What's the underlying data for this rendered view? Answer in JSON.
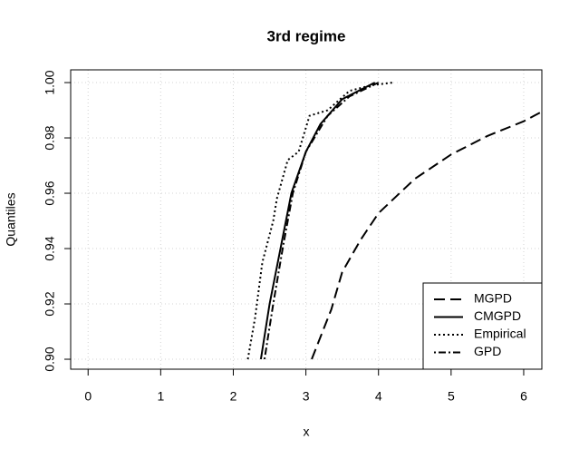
{
  "chart_data": {
    "type": "line",
    "title": "3rd regime",
    "x_label": "x",
    "y_label": "Quantiles",
    "xlim": [
      -0.24,
      6.25
    ],
    "ylim": [
      0.8964,
      1.0046
    ],
    "xticks": [
      0,
      1,
      2,
      3,
      4,
      5,
      6
    ],
    "yticks": [
      {
        "value": 0.9,
        "label": "0.90"
      },
      {
        "value": 0.92,
        "label": "0.92"
      },
      {
        "value": 0.94,
        "label": "0.94"
      },
      {
        "value": 0.96,
        "label": "0.96"
      },
      {
        "value": 0.98,
        "label": "0.98"
      },
      {
        "value": 1.0,
        "label": "1.00"
      }
    ],
    "grid": true,
    "legend": "bottomright",
    "series": [
      {
        "name": "MGPD",
        "color": "#000000",
        "linestyle": "dashed",
        "x": [
          3.08,
          3.2,
          3.35,
          3.5,
          3.75,
          4,
          4.5,
          5,
          5.5,
          6,
          6.25
        ],
        "values": [
          0.9,
          0.908,
          0.918,
          0.9315,
          0.943,
          0.9528,
          0.9652,
          0.974,
          0.9807,
          0.986,
          0.9895
        ]
      },
      {
        "name": "CMGPD",
        "color": "#000000",
        "linestyle": "solid",
        "x": [
          2.38,
          2.5,
          2.65,
          2.8,
          3.0,
          3.2,
          3.5,
          3.95
        ],
        "values": [
          0.9,
          0.92,
          0.94,
          0.96,
          0.975,
          0.985,
          0.994,
          1.0
        ]
      },
      {
        "name": "Empirical",
        "color": "#000000",
        "linestyle": "dotted",
        "x": [
          2.2,
          2.3,
          2.4,
          2.55,
          2.6,
          2.75,
          2.9,
          3.05,
          3.3,
          3.6,
          3.9,
          4.2
        ],
        "values": [
          0.9,
          0.915,
          0.935,
          0.95,
          0.958,
          0.972,
          0.975,
          0.988,
          0.99,
          0.997,
          0.999,
          1.0
        ]
      },
      {
        "name": "GPD",
        "color": "#000000",
        "linestyle": "dotdash",
        "x": [
          2.43,
          2.55,
          2.68,
          2.82,
          3.0,
          3.3,
          3.6,
          4.0
        ],
        "values": [
          0.9,
          0.92,
          0.94,
          0.96,
          0.975,
          0.988,
          0.995,
          1.0
        ]
      }
    ]
  }
}
